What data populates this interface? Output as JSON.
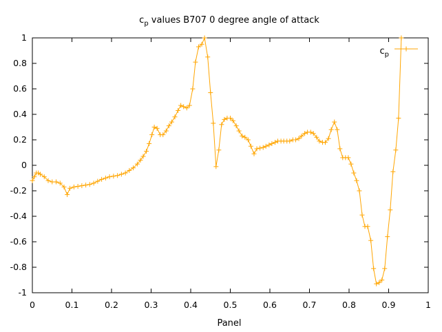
{
  "chart_data": {
    "type": "line",
    "title_main": "c",
    "title_sub": "p",
    "title_rest": " values B707 0 degree angle of attack",
    "xlabel": "Panel",
    "ylabel": "",
    "xlim": [
      0,
      1
    ],
    "ylim": [
      -1,
      1
    ],
    "xticks": [
      "0",
      "0.1",
      "0.2",
      "0.3",
      "0.4",
      "0.5",
      "0.6",
      "0.7",
      "0.8",
      "0.9",
      "1"
    ],
    "yticks": [
      "-1",
      "-0.8",
      "-0.6",
      "-0.4",
      "-0.2",
      "0",
      "0.2",
      "0.4",
      "0.6",
      "0.8",
      "1"
    ],
    "grid": false,
    "legend_position": "top-right",
    "series": [
      {
        "name_main": "c",
        "name_sub": "p",
        "color": "#ffa500",
        "marker": "plus",
        "points": [
          [
            0.0,
            -0.12
          ],
          [
            0.005,
            -0.09
          ],
          [
            0.01,
            -0.06
          ],
          [
            0.015,
            -0.06
          ],
          [
            0.02,
            -0.07
          ],
          [
            0.03,
            -0.09
          ],
          [
            0.04,
            -0.12
          ],
          [
            0.05,
            -0.13
          ],
          [
            0.06,
            -0.13
          ],
          [
            0.07,
            -0.14
          ],
          [
            0.08,
            -0.17
          ],
          [
            0.088,
            -0.23
          ],
          [
            0.095,
            -0.18
          ],
          [
            0.105,
            -0.17
          ],
          [
            0.115,
            -0.165
          ],
          [
            0.125,
            -0.16
          ],
          [
            0.135,
            -0.155
          ],
          [
            0.145,
            -0.15
          ],
          [
            0.155,
            -0.14
          ],
          [
            0.165,
            -0.125
          ],
          [
            0.175,
            -0.11
          ],
          [
            0.185,
            -0.1
          ],
          [
            0.195,
            -0.09
          ],
          [
            0.205,
            -0.085
          ],
          [
            0.215,
            -0.08
          ],
          [
            0.225,
            -0.07
          ],
          [
            0.235,
            -0.06
          ],
          [
            0.245,
            -0.04
          ],
          [
            0.255,
            -0.02
          ],
          [
            0.265,
            0.01
          ],
          [
            0.273,
            0.04
          ],
          [
            0.28,
            0.07
          ],
          [
            0.288,
            0.11
          ],
          [
            0.295,
            0.17
          ],
          [
            0.302,
            0.24
          ],
          [
            0.308,
            0.3
          ],
          [
            0.315,
            0.29
          ],
          [
            0.323,
            0.24
          ],
          [
            0.33,
            0.24
          ],
          [
            0.338,
            0.27
          ],
          [
            0.345,
            0.31
          ],
          [
            0.352,
            0.34
          ],
          [
            0.36,
            0.38
          ],
          [
            0.368,
            0.43
          ],
          [
            0.375,
            0.47
          ],
          [
            0.382,
            0.46
          ],
          [
            0.39,
            0.45
          ],
          [
            0.397,
            0.47
          ],
          [
            0.405,
            0.6
          ],
          [
            0.412,
            0.81
          ],
          [
            0.42,
            0.93
          ],
          [
            0.428,
            0.95
          ],
          [
            0.435,
            1.0
          ],
          [
            0.443,
            0.85
          ],
          [
            0.45,
            0.57
          ],
          [
            0.457,
            0.33
          ],
          [
            0.464,
            -0.01
          ],
          [
            0.471,
            0.12
          ],
          [
            0.478,
            0.32
          ],
          [
            0.485,
            0.36
          ],
          [
            0.492,
            0.37
          ],
          [
            0.5,
            0.37
          ],
          [
            0.507,
            0.35
          ],
          [
            0.515,
            0.31
          ],
          [
            0.522,
            0.27
          ],
          [
            0.53,
            0.23
          ],
          [
            0.537,
            0.22
          ],
          [
            0.545,
            0.2
          ],
          [
            0.552,
            0.15
          ],
          [
            0.56,
            0.09
          ],
          [
            0.567,
            0.13
          ],
          [
            0.575,
            0.135
          ],
          [
            0.583,
            0.14
          ],
          [
            0.59,
            0.15
          ],
          [
            0.598,
            0.16
          ],
          [
            0.605,
            0.17
          ],
          [
            0.613,
            0.18
          ],
          [
            0.62,
            0.19
          ],
          [
            0.628,
            0.19
          ],
          [
            0.635,
            0.19
          ],
          [
            0.643,
            0.19
          ],
          [
            0.65,
            0.19
          ],
          [
            0.658,
            0.2
          ],
          [
            0.665,
            0.2
          ],
          [
            0.673,
            0.21
          ],
          [
            0.68,
            0.23
          ],
          [
            0.688,
            0.25
          ],
          [
            0.695,
            0.26
          ],
          [
            0.703,
            0.26
          ],
          [
            0.71,
            0.25
          ],
          [
            0.718,
            0.22
          ],
          [
            0.725,
            0.19
          ],
          [
            0.733,
            0.18
          ],
          [
            0.74,
            0.18
          ],
          [
            0.748,
            0.21
          ],
          [
            0.755,
            0.28
          ],
          [
            0.763,
            0.34
          ],
          [
            0.77,
            0.28
          ],
          [
            0.777,
            0.13
          ],
          [
            0.784,
            0.06
          ],
          [
            0.791,
            0.06
          ],
          [
            0.798,
            0.06
          ],
          [
            0.805,
            0.01
          ],
          [
            0.812,
            -0.06
          ],
          [
            0.819,
            -0.12
          ],
          [
            0.826,
            -0.2
          ],
          [
            0.833,
            -0.39
          ],
          [
            0.84,
            -0.48
          ],
          [
            0.847,
            -0.48
          ],
          [
            0.855,
            -0.59
          ],
          [
            0.862,
            -0.81
          ],
          [
            0.869,
            -0.93
          ],
          [
            0.876,
            -0.92
          ],
          [
            0.883,
            -0.9
          ],
          [
            0.89,
            -0.81
          ],
          [
            0.897,
            -0.56
          ],
          [
            0.904,
            -0.35
          ],
          [
            0.911,
            -0.05
          ],
          [
            0.918,
            0.12
          ],
          [
            0.925,
            0.37
          ],
          [
            0.932,
            1.0
          ]
        ]
      }
    ]
  }
}
